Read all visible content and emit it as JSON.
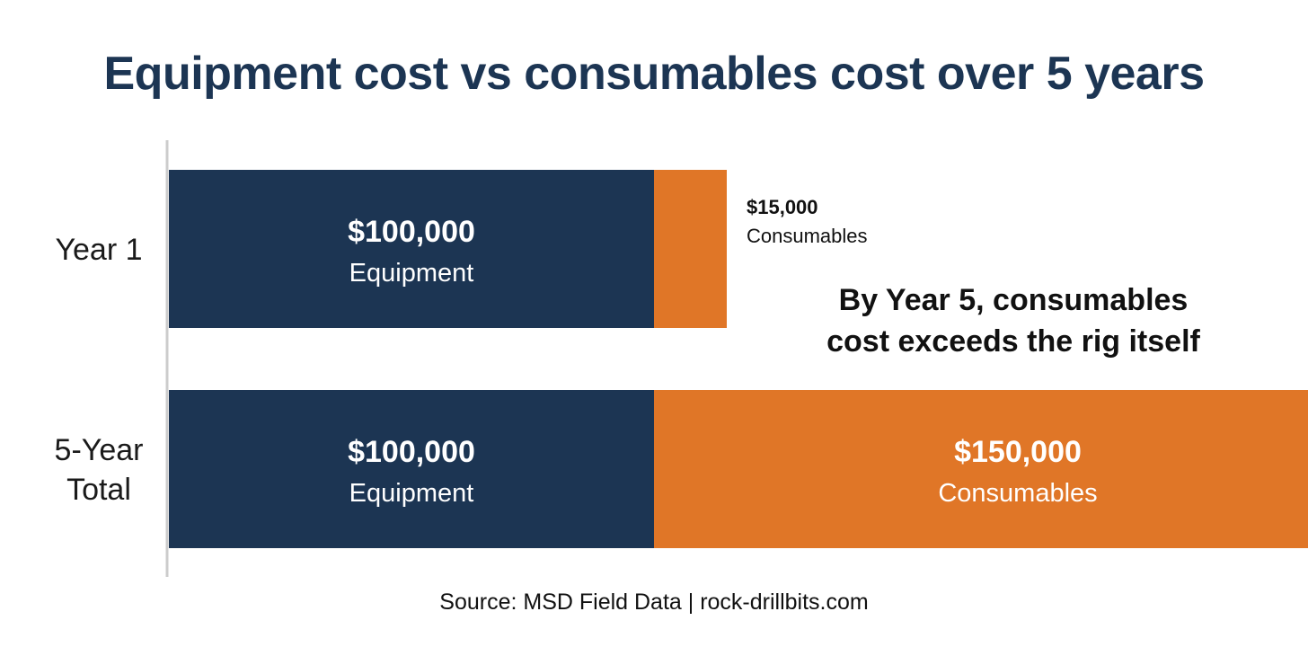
{
  "chart_data": {
    "type": "bar",
    "orientation": "horizontal",
    "stacked": true,
    "title": "Equipment cost vs consumables cost over 5 years",
    "categories": [
      "Year 1",
      "5-Year Total"
    ],
    "category_lines": [
      [
        "Year 1"
      ],
      [
        "5-Year",
        "Total"
      ]
    ],
    "series": [
      {
        "name": "Equipment",
        "color": "#1c3553",
        "values": [
          100000,
          100000
        ],
        "value_labels": [
          "$100,000",
          "$100,000"
        ]
      },
      {
        "name": "Consumables",
        "color": "#e07627",
        "values": [
          15000,
          150000
        ],
        "value_labels": [
          "$15,000",
          "$150,000"
        ]
      }
    ],
    "xlim": [
      0,
      250000
    ],
    "annotation": [
      "By Year 5, consumables",
      "cost exceeds the rig itself"
    ],
    "grid": false,
    "legend": "none"
  },
  "source": "Source: MSD Field Data | rock-drillbits.com"
}
